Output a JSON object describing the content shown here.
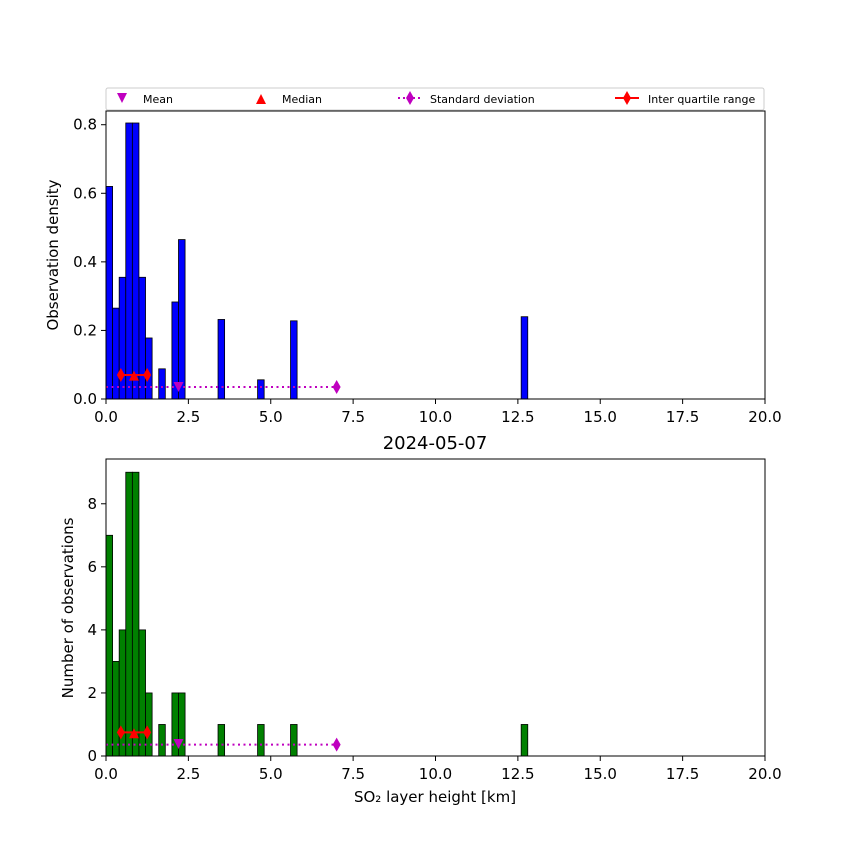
{
  "colors": {
    "top_bars": "#0000ff",
    "bottom_bars": "#008000",
    "mean": "#bf00bf",
    "median": "#ff0000",
    "std": "#bf00bf",
    "iqr": "#ff0000"
  },
  "legend": {
    "mean": "Mean",
    "median": "Median",
    "std": "Standard deviation",
    "iqr": "Inter quartile range"
  },
  "chart_data": [
    {
      "type": "bar",
      "title": "",
      "xlabel": "",
      "ylabel": "Observation density",
      "xlim": [
        0,
        20
      ],
      "ylim": [
        0,
        0.84
      ],
      "xticks": [
        "0.0",
        "2.5",
        "5.0",
        "7.5",
        "10.0",
        "12.5",
        "15.0",
        "17.5",
        "20.0"
      ],
      "yticks": [
        "0.0",
        "0.2",
        "0.4",
        "0.6",
        "0.8"
      ],
      "bin_width": 0.2,
      "bins": [
        {
          "x": 0.0,
          "value": 0.62
        },
        {
          "x": 0.2,
          "value": 0.265
        },
        {
          "x": 0.4,
          "value": 0.355
        },
        {
          "x": 0.6,
          "value": 0.805
        },
        {
          "x": 0.8,
          "value": 0.805
        },
        {
          "x": 1.0,
          "value": 0.355
        },
        {
          "x": 1.2,
          "value": 0.178
        },
        {
          "x": 1.6,
          "value": 0.088
        },
        {
          "x": 2.0,
          "value": 0.283
        },
        {
          "x": 2.2,
          "value": 0.465
        },
        {
          "x": 3.4,
          "value": 0.232
        },
        {
          "x": 4.6,
          "value": 0.056
        },
        {
          "x": 5.6,
          "value": 0.228
        },
        {
          "x": 12.6,
          "value": 0.24
        }
      ],
      "stats": {
        "mean": {
          "x": 2.2,
          "y": 0.035
        },
        "median": {
          "x": 0.85,
          "y": 0.068
        },
        "std_range": [
          -2.6,
          7.0
        ],
        "std_y": 0.035,
        "iqr_range": [
          0.45,
          1.25
        ],
        "iqr_y": 0.07
      }
    },
    {
      "type": "bar",
      "title": "2024-05-07",
      "xlabel": "SO₂ layer height [km]",
      "ylabel": "Number of observations",
      "xlim": [
        0,
        20
      ],
      "ylim": [
        0,
        9.42
      ],
      "xticks": [
        "0.0",
        "2.5",
        "5.0",
        "7.5",
        "10.0",
        "12.5",
        "15.0",
        "17.5",
        "20.0"
      ],
      "yticks": [
        "0",
        "2",
        "4",
        "6",
        "8"
      ],
      "bin_width": 0.2,
      "bins": [
        {
          "x": 0.0,
          "value": 7
        },
        {
          "x": 0.2,
          "value": 3
        },
        {
          "x": 0.4,
          "value": 4
        },
        {
          "x": 0.6,
          "value": 9
        },
        {
          "x": 0.8,
          "value": 9
        },
        {
          "x": 1.0,
          "value": 4
        },
        {
          "x": 1.2,
          "value": 2
        },
        {
          "x": 1.6,
          "value": 1
        },
        {
          "x": 2.0,
          "value": 2
        },
        {
          "x": 2.2,
          "value": 2
        },
        {
          "x": 3.4,
          "value": 1
        },
        {
          "x": 4.6,
          "value": 1
        },
        {
          "x": 5.6,
          "value": 1
        },
        {
          "x": 12.6,
          "value": 1
        }
      ],
      "stats": {
        "mean": {
          "x": 2.2,
          "y": 0.38
        },
        "median": {
          "x": 0.85,
          "y": 0.72
        },
        "std_range": [
          -2.6,
          7.0
        ],
        "std_y": 0.36,
        "iqr_range": [
          0.45,
          1.25
        ],
        "iqr_y": 0.75
      }
    }
  ]
}
